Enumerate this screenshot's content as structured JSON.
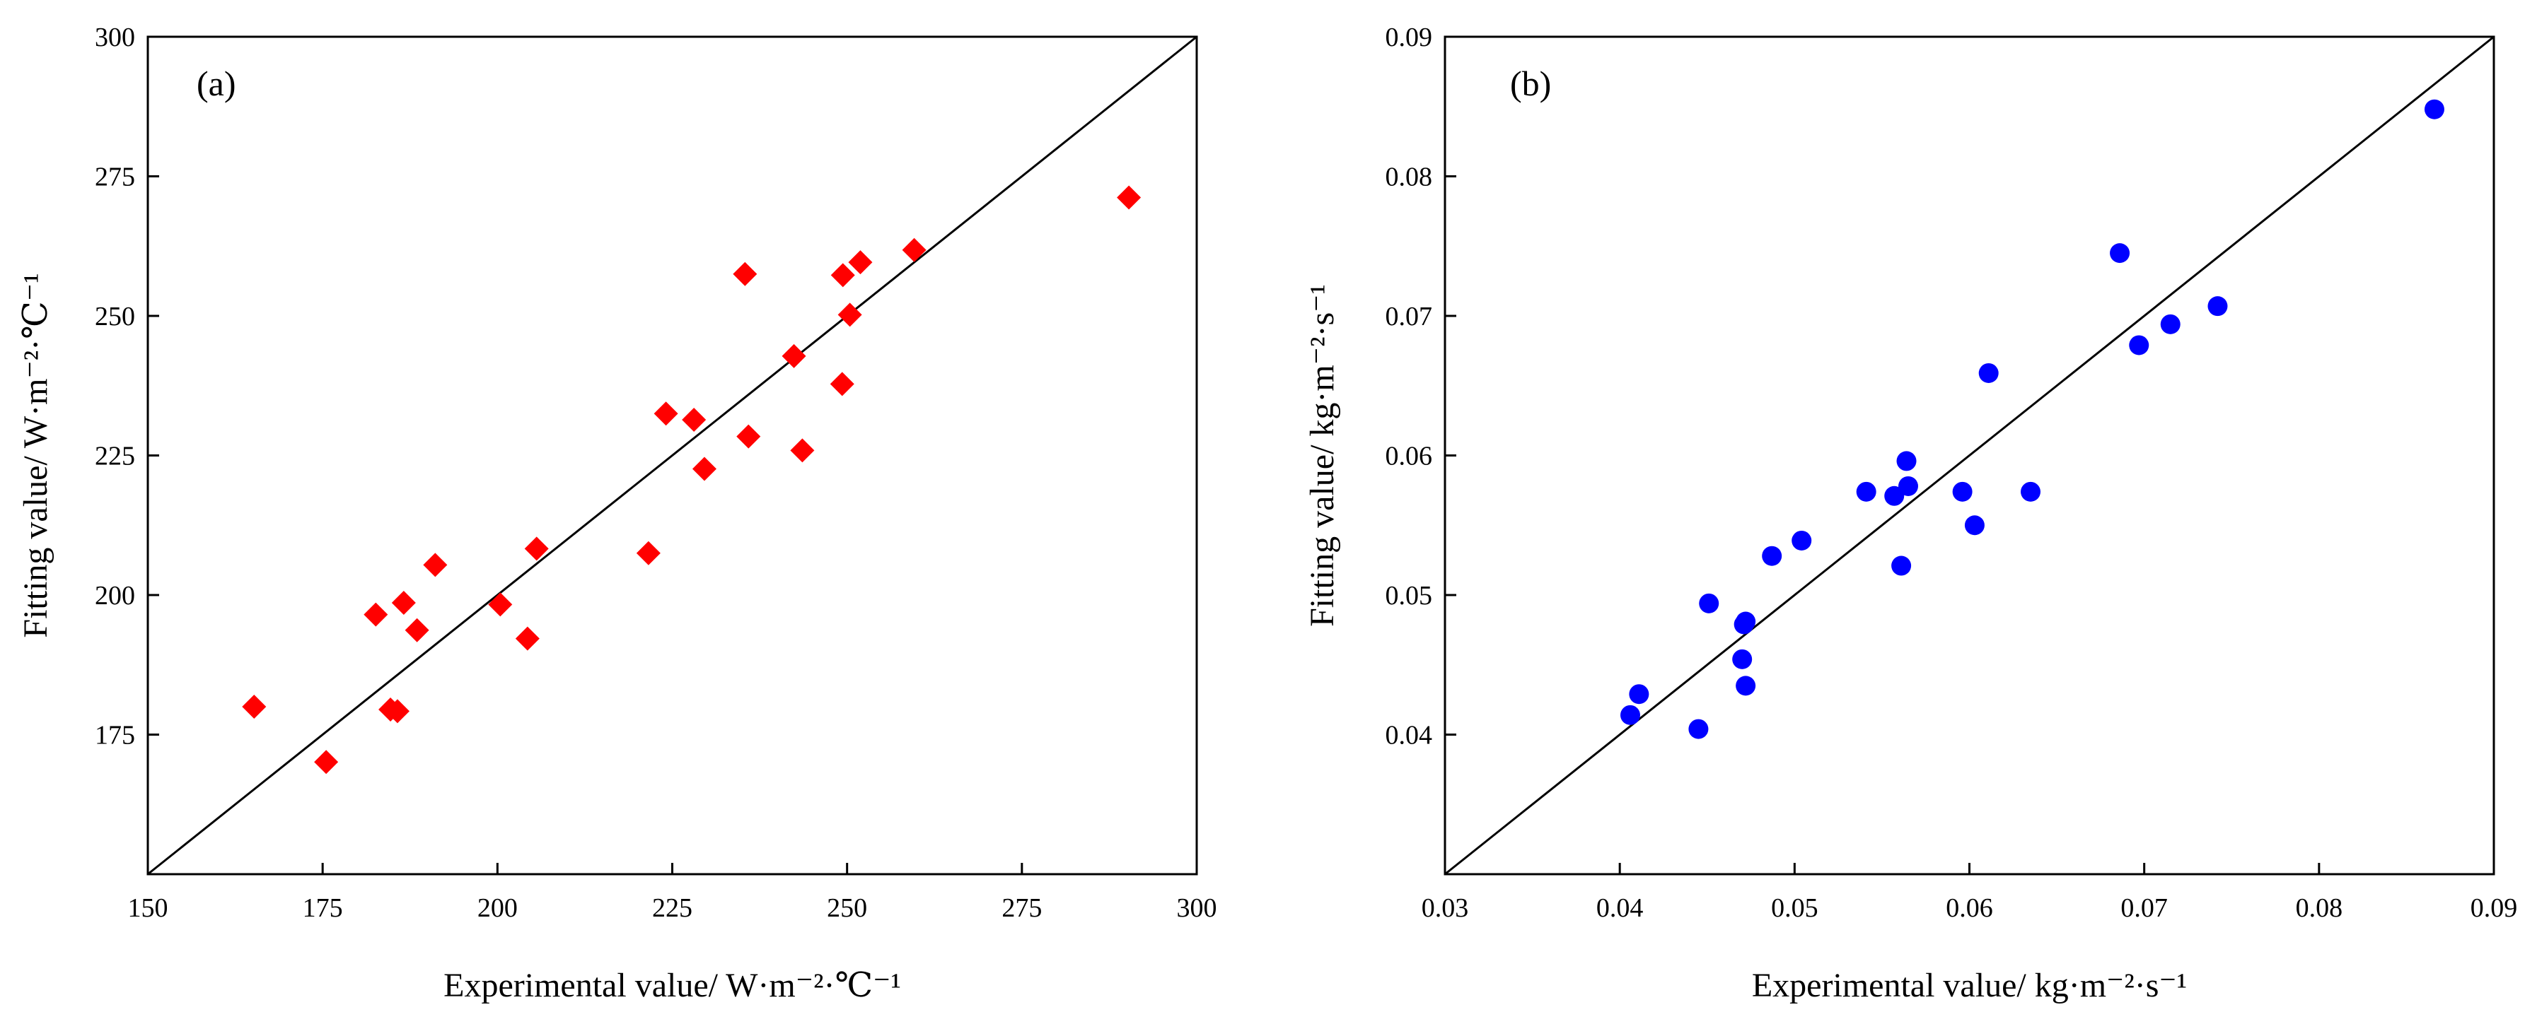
{
  "chart_data": [
    {
      "type": "scatter",
      "panel_label": "(a)",
      "xlabel": "Experimental value/ W·m⁻²·℃⁻¹",
      "ylabel": "Fitting value/ W·m⁻²·℃⁻¹",
      "xlim": [
        150,
        300
      ],
      "ylim": [
        150,
        300
      ],
      "xticks": [
        150,
        175,
        200,
        225,
        250,
        275,
        300
      ],
      "yticks": [
        175,
        200,
        225,
        250,
        275,
        300
      ],
      "xtick_labels": [
        "150",
        "175",
        "200",
        "225",
        "250",
        "275",
        "300"
      ],
      "ytick_labels": [
        "175",
        "200",
        "225",
        "250",
        "275",
        "300"
      ],
      "marker": "diamond",
      "color": "#ff0000",
      "reference_line": "y = x",
      "series": [
        {
          "name": "fitting",
          "points": [
            [
              165.2,
              180.0
            ],
            [
              175.5,
              170.1
            ],
            [
              182.6,
              196.5
            ],
            [
              184.7,
              179.5
            ],
            [
              185.7,
              179.2
            ],
            [
              186.6,
              198.6
            ],
            [
              188.5,
              193.7
            ],
            [
              191.1,
              205.4
            ],
            [
              200.4,
              198.3
            ],
            [
              204.3,
              192.2
            ],
            [
              205.6,
              208.3
            ],
            [
              221.6,
              207.5
            ],
            [
              224.1,
              232.5
            ],
            [
              228.1,
              231.4
            ],
            [
              229.6,
              222.6
            ],
            [
              235.4,
              257.5
            ],
            [
              235.9,
              228.4
            ],
            [
              242.4,
              242.8
            ],
            [
              243.6,
              225.9
            ],
            [
              249.3,
              237.8
            ],
            [
              249.4,
              257.3
            ],
            [
              250.4,
              250.2
            ],
            [
              251.9,
              259.6
            ],
            [
              259.6,
              261.8
            ],
            [
              290.3,
              271.2
            ]
          ]
        }
      ]
    },
    {
      "type": "scatter",
      "panel_label": "(b)",
      "xlabel": "Experimental value/ kg·m⁻²·s⁻¹",
      "ylabel": "Fitting value/ kg·m⁻²·s⁻¹",
      "xlim": [
        0.03,
        0.09
      ],
      "ylim": [
        0.03,
        0.09
      ],
      "xticks": [
        0.03,
        0.04,
        0.05,
        0.06,
        0.07,
        0.08,
        0.09
      ],
      "yticks": [
        0.04,
        0.05,
        0.06,
        0.07,
        0.08,
        0.09
      ],
      "xtick_labels": [
        "0.03",
        "0.04",
        "0.05",
        "0.06",
        "0.07",
        "0.08",
        "0.09"
      ],
      "ytick_labels": [
        "0.04",
        "0.05",
        "0.06",
        "0.07",
        "0.08",
        "0.09"
      ],
      "marker": "circle",
      "color": "#0000ff",
      "reference_line": "y = x",
      "series": [
        {
          "name": "fitting",
          "points": [
            [
              0.0406,
              0.0414
            ],
            [
              0.0411,
              0.0429
            ],
            [
              0.0445,
              0.0404
            ],
            [
              0.0451,
              0.0494
            ],
            [
              0.047,
              0.0454
            ],
            [
              0.0471,
              0.0479
            ],
            [
              0.0472,
              0.0481
            ],
            [
              0.0472,
              0.0435
            ],
            [
              0.0487,
              0.0528
            ],
            [
              0.0504,
              0.0539
            ],
            [
              0.0541,
              0.0574
            ],
            [
              0.0557,
              0.0571
            ],
            [
              0.0561,
              0.0521
            ],
            [
              0.0564,
              0.0596
            ],
            [
              0.0565,
              0.0578
            ],
            [
              0.0596,
              0.0574
            ],
            [
              0.0603,
              0.055
            ],
            [
              0.0611,
              0.0659
            ],
            [
              0.0635,
              0.0574
            ],
            [
              0.0686,
              0.0745
            ],
            [
              0.0697,
              0.0679
            ],
            [
              0.0715,
              0.0694
            ],
            [
              0.0742,
              0.0707
            ],
            [
              0.0866,
              0.0848
            ]
          ]
        }
      ]
    }
  ]
}
